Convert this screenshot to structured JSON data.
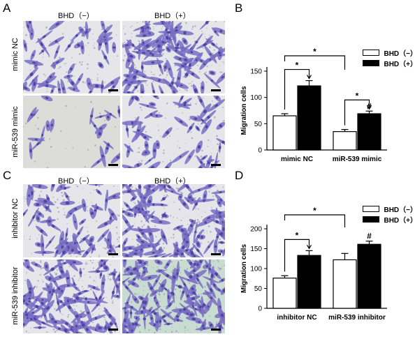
{
  "figure": {
    "panels": [
      {
        "letter": "A",
        "columns": [
          "BHD（−）",
          "BHD（+）"
        ],
        "rows": [
          "mimic NC",
          "miR-539 mimic"
        ]
      },
      {
        "letter": "C",
        "columns": [
          "BHD（−）",
          "BHD（+）"
        ],
        "rows": [
          "inhibitor NC",
          "miR-539 inhibitor"
        ]
      }
    ],
    "chart_letters": [
      "B",
      "D"
    ]
  },
  "colors": {
    "stain": "#7a6fc4",
    "stain_dark": "#4b3fa0",
    "background_light": "#e6e6ea",
    "background_green": "#c9dcd1",
    "bar_open": "#ffffff",
    "bar_filled": "#000000"
  },
  "chart_data": [
    {
      "type": "bar",
      "categories": [
        "mimic NC",
        "miR-539 mimic"
      ],
      "series": [
        {
          "name": "BHD（−）",
          "values": [
            65,
            35
          ],
          "errors": [
            4,
            4
          ]
        },
        {
          "name": "BHD（+）",
          "values": [
            122,
            69
          ],
          "errors": [
            10,
            5
          ]
        }
      ],
      "ylabel": "Migration cells",
      "ylim": [
        0,
        150
      ],
      "yticks": [
        0,
        50,
        100,
        150
      ],
      "legend": "top-right",
      "annotations": {
        "within_group": [
          "*",
          "*"
        ],
        "between_groups": "*",
        "hash": "#"
      }
    },
    {
      "type": "bar",
      "categories": [
        "inhibitor NC",
        "miR-539 inhibitor"
      ],
      "series": [
        {
          "name": "BHD（−）",
          "values": [
            76,
            122
          ],
          "errors": [
            6,
            16
          ]
        },
        {
          "name": "BHD（+）",
          "values": [
            133,
            161
          ],
          "errors": [
            12,
            8
          ]
        }
      ],
      "ylabel": "Migration cells",
      "ylim": [
        0,
        200
      ],
      "yticks": [
        0,
        50,
        100,
        150,
        200
      ],
      "legend": "top-right",
      "annotations": {
        "within_group": [
          "*"
        ],
        "between_groups": "*",
        "hash": "#"
      }
    }
  ]
}
